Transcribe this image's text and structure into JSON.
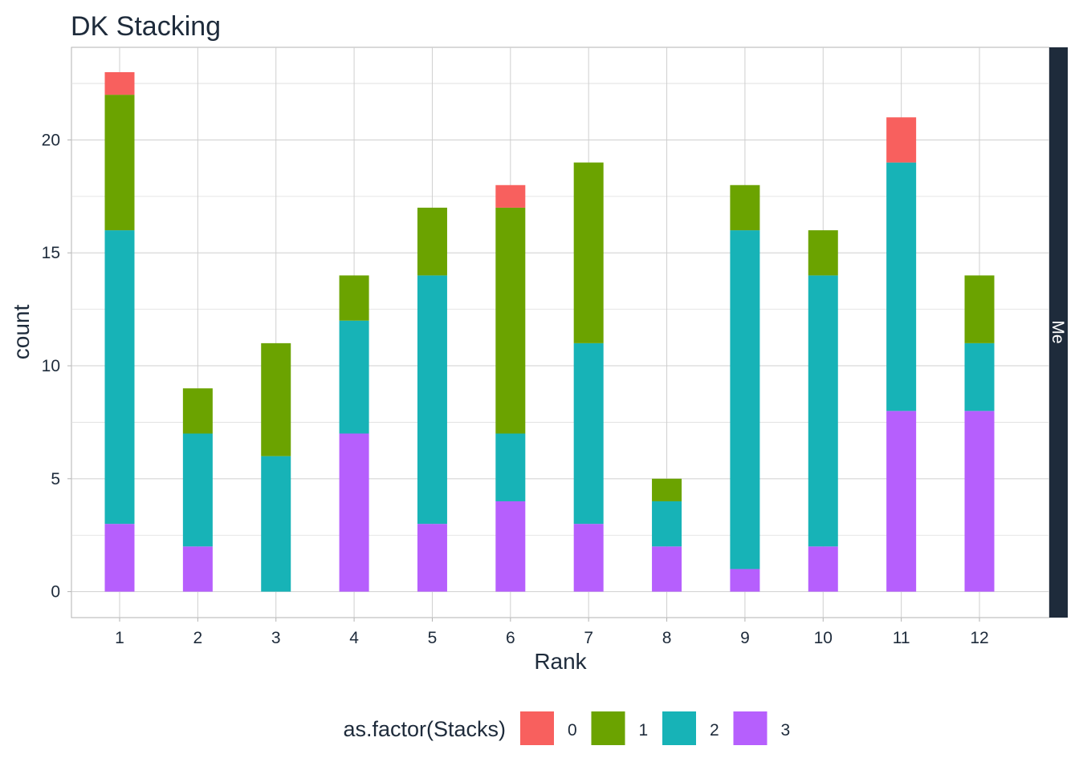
{
  "chart_data": {
    "type": "bar",
    "stacked": true,
    "title": "DK Stacking",
    "xlabel": "Rank",
    "ylabel": "count",
    "facet_label": "Me",
    "legend_title": "as.factor(Stacks)",
    "legend_position": "bottom",
    "grid": true,
    "ylim": [
      -1.15,
      24.1
    ],
    "y_ticks": [
      0,
      5,
      10,
      15,
      20
    ],
    "categories": [
      "1",
      "2",
      "3",
      "4",
      "5",
      "6",
      "7",
      "8",
      "9",
      "10",
      "11",
      "12"
    ],
    "series": [
      {
        "name": "0",
        "color": "#f8605e",
        "values": [
          1,
          0,
          0,
          0,
          0,
          1,
          0,
          0,
          0,
          0,
          2,
          0
        ]
      },
      {
        "name": "1",
        "color": "#6ba300",
        "values": [
          6,
          2,
          5,
          2,
          3,
          10,
          8,
          1,
          2,
          2,
          0,
          3
        ]
      },
      {
        "name": "2",
        "color": "#17b3b7",
        "values": [
          13,
          5,
          6,
          5,
          11,
          3,
          8,
          2,
          15,
          12,
          11,
          3
        ]
      },
      {
        "name": "3",
        "color": "#b65ffd",
        "values": [
          3,
          2,
          0,
          7,
          3,
          4,
          3,
          2,
          1,
          2,
          8,
          8
        ]
      }
    ]
  }
}
